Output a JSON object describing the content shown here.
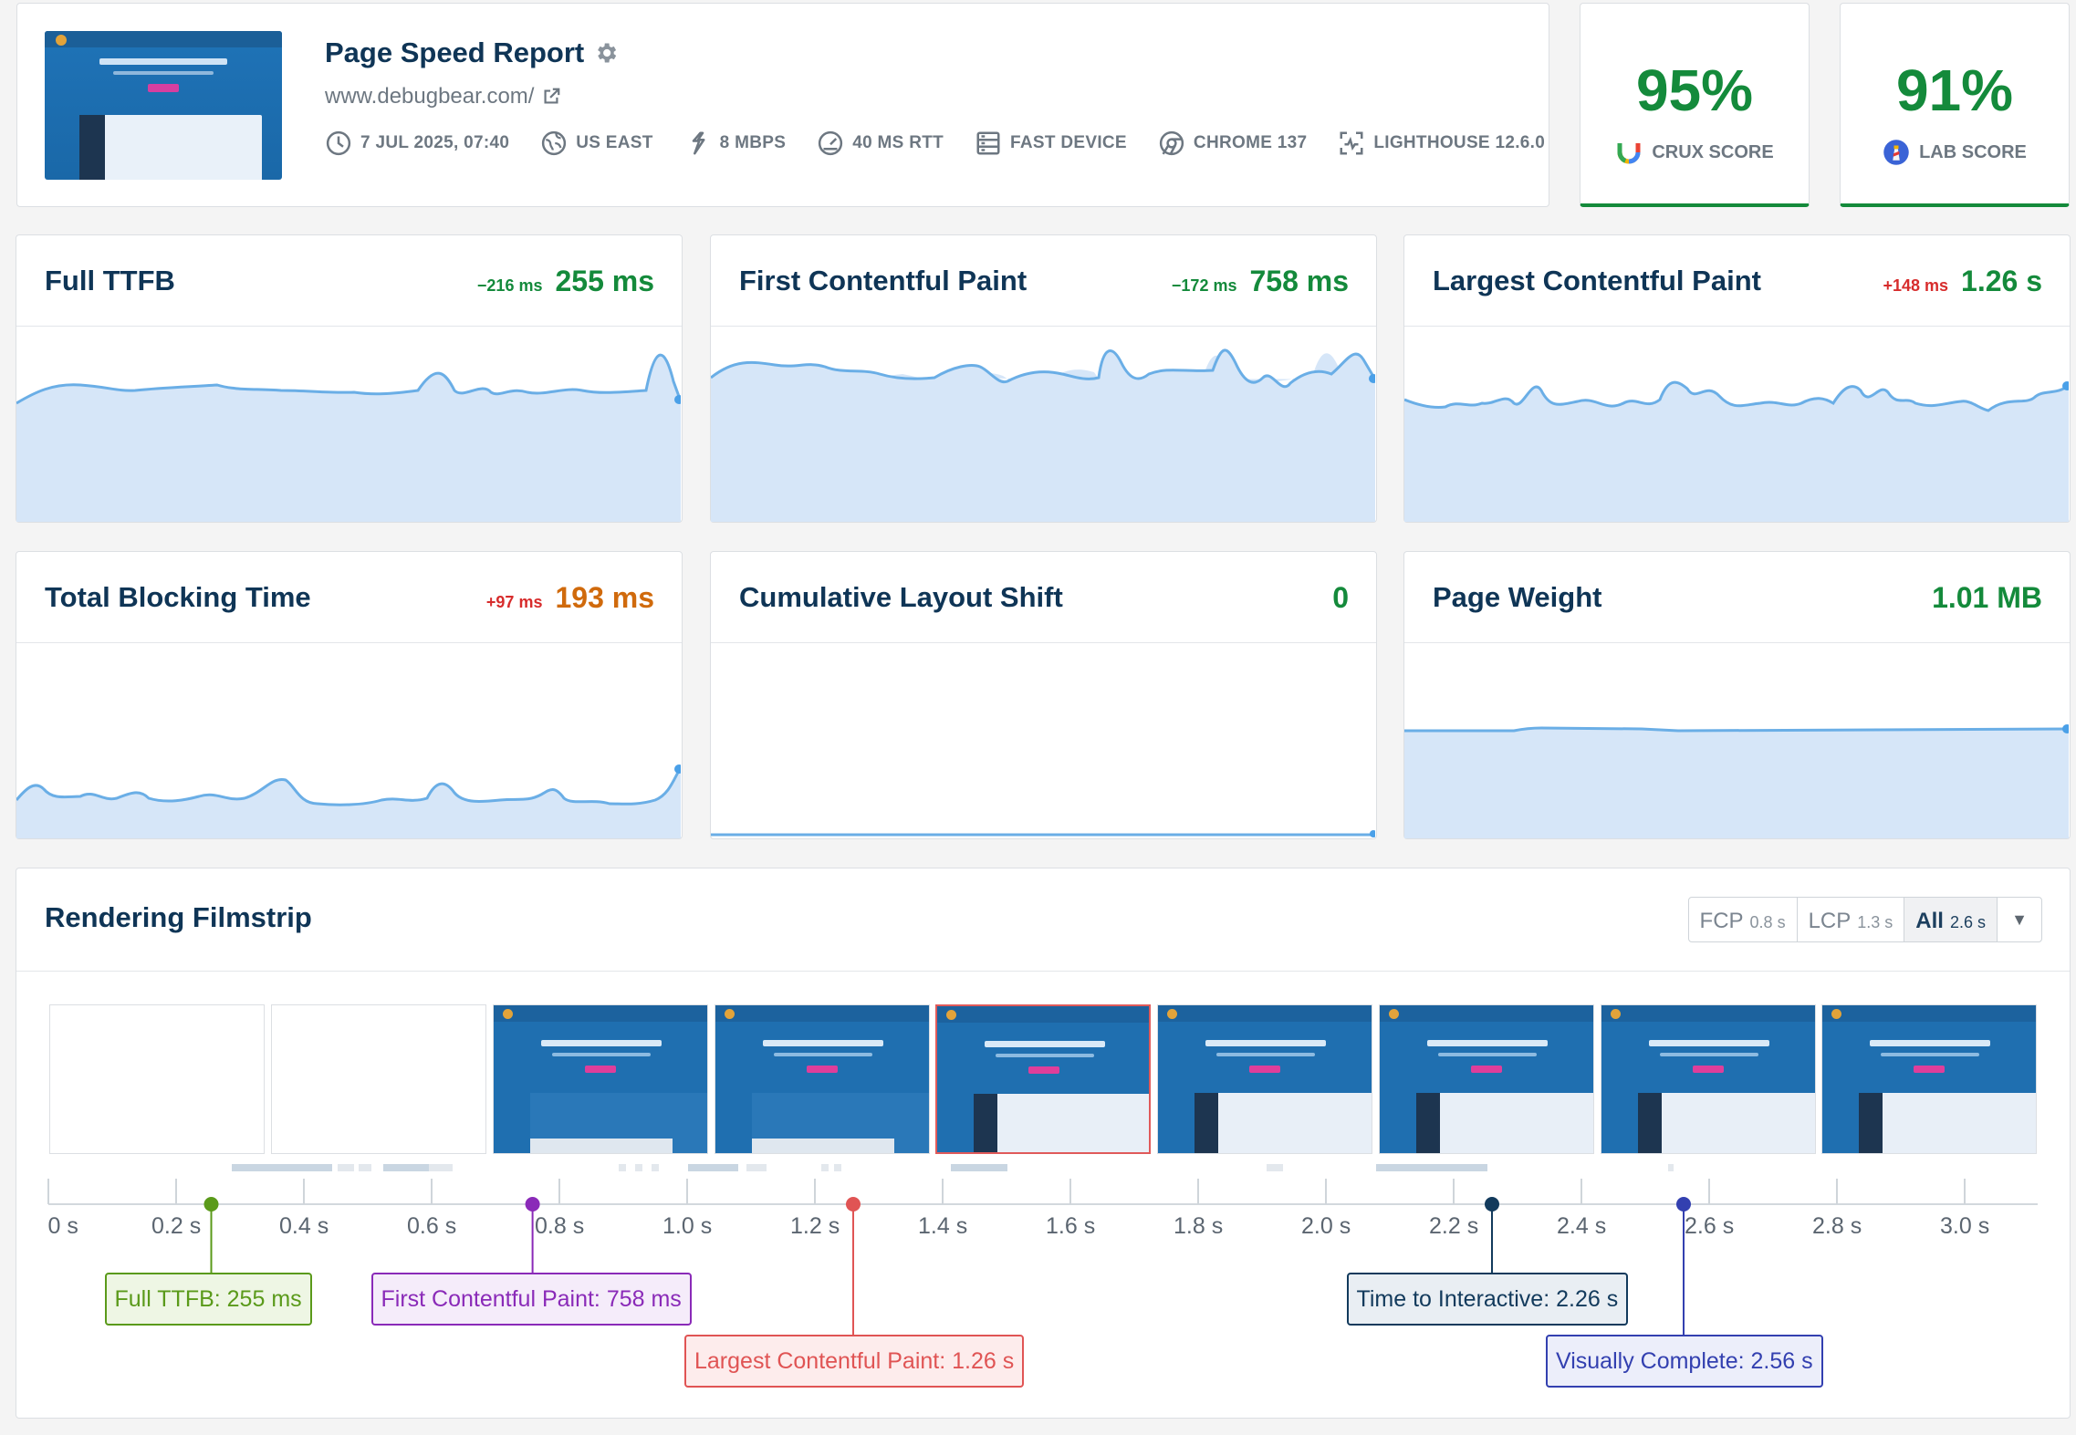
{
  "header": {
    "title": "Page Speed Report",
    "url": "www.debugbear.com/",
    "meta": [
      {
        "icon": "clock-icon",
        "label": "7 JUL 2025, 07:40"
      },
      {
        "icon": "globe-icon",
        "label": "US EAST"
      },
      {
        "icon": "bandwidth-icon",
        "label": "8 MBPS"
      },
      {
        "icon": "gauge-icon",
        "label": "40 MS RTT"
      },
      {
        "icon": "device-icon",
        "label": "FAST DEVICE"
      },
      {
        "icon": "chrome-icon",
        "label": "CHROME 137"
      },
      {
        "icon": "lighthouse-icon",
        "label": "LIGHTHOUSE 12.6.0"
      }
    ],
    "thumbnail": {
      "headline": "Monitor Page Speed and Core Web Vitals",
      "brand": "DebugBear"
    }
  },
  "scores": [
    {
      "value": "95%",
      "label": "CRUX SCORE",
      "icon": "crux-icon",
      "color": "#148a3b"
    },
    {
      "value": "91%",
      "label": "LAB SCORE",
      "icon": "lighthouse-logo-icon",
      "color": "#148a3b"
    }
  ],
  "metrics": [
    {
      "title": "Full TTFB",
      "delta": "−216 ms",
      "delta_color": "green",
      "value": "255 ms",
      "value_color": "green"
    },
    {
      "title": "First Contentful Paint",
      "delta": "−172 ms",
      "delta_color": "green",
      "value": "758 ms",
      "value_color": "green"
    },
    {
      "title": "Largest Contentful Paint",
      "delta": "+148 ms",
      "delta_color": "red",
      "value": "1.26 s",
      "value_color": "green"
    },
    {
      "title": "Total Blocking Time",
      "delta": "+97 ms",
      "delta_color": "red",
      "value": "193 ms",
      "value_color": "orange"
    },
    {
      "title": "Cumulative Layout Shift",
      "delta": "",
      "delta_color": "green",
      "value": "0",
      "value_color": "green"
    },
    {
      "title": "Page Weight",
      "delta": "",
      "delta_color": "green",
      "value": "1.01 MB",
      "value_color": "green"
    }
  ],
  "filmstrip": {
    "title": "Rendering Filmstrip",
    "tabs": [
      {
        "label": "FCP",
        "value": "0.8 s",
        "active": false
      },
      {
        "label": "LCP",
        "value": "1.3 s",
        "active": false
      },
      {
        "label": "All",
        "value": "2.6 s",
        "active": true
      }
    ],
    "ticks": [
      "0 s",
      "0.2 s",
      "0.4 s",
      "0.6 s",
      "0.8 s",
      "1.0 s",
      "1.2 s",
      "1.4 s",
      "1.6 s",
      "1.8 s",
      "2.0 s",
      "2.2 s",
      "2.4 s",
      "2.6 s",
      "2.8 s",
      "3.0 s"
    ],
    "markers": [
      {
        "label": "Full TTFB: 255 ms",
        "time": 0.255,
        "color": "#5a9a1a",
        "bg": "#eef6e4"
      },
      {
        "label": "First Contentful Paint: 758 ms",
        "time": 0.758,
        "color": "#8a2ab8",
        "bg": "#f5ecfa"
      },
      {
        "label": "Largest Contentful Paint: 1.26 s",
        "time": 1.26,
        "color": "#e05454",
        "bg": "#fdecec"
      },
      {
        "label": "Time to Interactive: 2.26 s",
        "time": 2.26,
        "color": "#123a5c",
        "bg": "#e9eef3"
      },
      {
        "label": "Visually Complete: 2.56 s",
        "time": 2.56,
        "color": "#3340b0",
        "bg": "#eceefa"
      }
    ]
  }
}
